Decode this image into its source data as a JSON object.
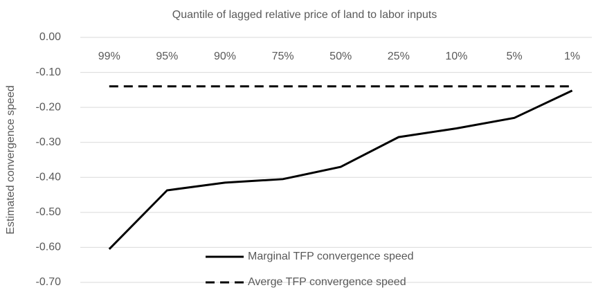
{
  "chart_data": {
    "type": "line",
    "title": "Quantile of lagged relative price of land to labor inputs",
    "y_label": "Estimated convergence speed",
    "categories": [
      "99%",
      "95%",
      "90%",
      "75%",
      "50%",
      "25%",
      "10%",
      "5%",
      "1%"
    ],
    "series": [
      {
        "name": "Marginal TFP convergence speed",
        "color": "#000000",
        "style": "solid",
        "values": [
          -0.605,
          -0.437,
          -0.415,
          -0.405,
          -0.37,
          -0.285,
          -0.26,
          -0.23,
          -0.152
        ]
      },
      {
        "name": "Averge TFP convergence speed",
        "color": "#000000",
        "style": "dashed",
        "values": [
          -0.14,
          -0.14,
          -0.14,
          -0.14,
          -0.14,
          -0.14,
          -0.14,
          -0.14,
          -0.14
        ]
      }
    ],
    "ylim": [
      -0.7,
      0
    ],
    "yticks": [
      {
        "value": 0,
        "label": "0.00"
      },
      {
        "value": -0.1,
        "label": "-0.10"
      },
      {
        "value": -0.2,
        "label": "-0.20"
      },
      {
        "value": -0.3,
        "label": "-0.30"
      },
      {
        "value": -0.4,
        "label": "-0.40"
      },
      {
        "value": -0.5,
        "label": "-0.50"
      },
      {
        "value": -0.6,
        "label": "-0.60"
      },
      {
        "value": -0.7,
        "label": "-0.70"
      }
    ],
    "grid": true,
    "legend": "bottom"
  }
}
